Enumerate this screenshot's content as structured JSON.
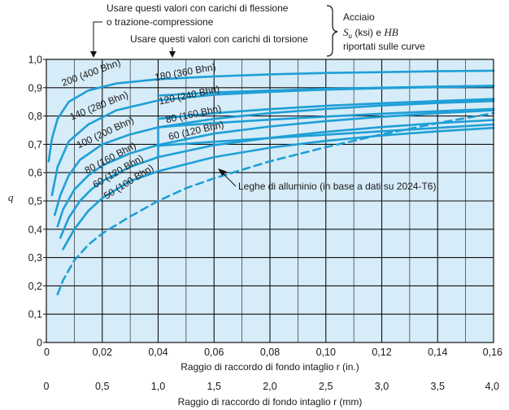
{
  "chart_data": {
    "type": "line",
    "xlabel": "Raggio di raccordo di fondo intaglio r (in.)",
    "xlabel2": "Raggio di raccordo di fondo intaglio r (mm)",
    "ylabel": "q",
    "xlim": [
      0,
      0.16
    ],
    "ylim": [
      0,
      1.0
    ],
    "xticks": [
      "0",
      "0,02",
      "0,04",
      "0,06",
      "0,08",
      "0,10",
      "0,12",
      "0,14",
      "0,16"
    ],
    "xticks_mm": [
      "0",
      "0,5",
      "1,0",
      "1,5",
      "2,0",
      "2,5",
      "3,0",
      "3,5",
      "4,0"
    ],
    "yticks": [
      "0",
      "0,1",
      "0,2",
      "0,3",
      "0,4",
      "0,5",
      "0,6",
      "0,7",
      "0,8",
      "0,9",
      "1,0"
    ],
    "grid": true,
    "colors": {
      "background": "#d6ecf8",
      "curve": "#1e9fd6",
      "grid": "#111111"
    },
    "annotations": {
      "bending_line1": "Usare questi valori con carichi di flessione",
      "bending_line2": "o trazione-compressione",
      "torsion": "Usare questi valori con carichi di torsione",
      "steel_title": "Acciaio",
      "steel_su": "S",
      "steel_su_sub": "u",
      "steel_rest": " (ksi) e ",
      "steel_hb": "HB",
      "steel_line2": "riportati sulle curve",
      "aluminum": "Leghe di alluminio (in base a dati su 2024-T6)"
    },
    "series": [
      {
        "name": "200 (400 Bhn)",
        "group": "bending",
        "dashed_until": 0.0,
        "x": [
          0.0008,
          0.002,
          0.004,
          0.008,
          0.015,
          0.025,
          0.04,
          0.06,
          0.08,
          0.1,
          0.12,
          0.14,
          0.16
        ],
        "y": [
          0.64,
          0.72,
          0.79,
          0.85,
          0.89,
          0.915,
          0.93,
          0.94,
          0.947,
          0.952,
          0.955,
          0.958,
          0.96
        ]
      },
      {
        "name": "140 (280 Bhn)",
        "group": "bending",
        "dashed_until": 0.0,
        "x": [
          0.002,
          0.004,
          0.008,
          0.015,
          0.025,
          0.04,
          0.06,
          0.08,
          0.1,
          0.12,
          0.14,
          0.16
        ],
        "y": [
          0.52,
          0.62,
          0.71,
          0.77,
          0.82,
          0.855,
          0.875,
          0.885,
          0.893,
          0.898,
          0.902,
          0.905
        ]
      },
      {
        "name": "100 (200 Bhn)",
        "group": "bending",
        "dashed_until": 0.0,
        "x": [
          0.003,
          0.005,
          0.008,
          0.012,
          0.02,
          0.03,
          0.04,
          0.06,
          0.08,
          0.1,
          0.12,
          0.14,
          0.16
        ],
        "y": [
          0.45,
          0.52,
          0.59,
          0.645,
          0.7,
          0.735,
          0.76,
          0.79,
          0.81,
          0.825,
          0.837,
          0.846,
          0.853
        ]
      },
      {
        "name": "80 (160 Bhn)",
        "group": "bending",
        "dashed_until": 0.0,
        "x": [
          0.004,
          0.006,
          0.01,
          0.015,
          0.02,
          0.03,
          0.04,
          0.06,
          0.08,
          0.1,
          0.12,
          0.14,
          0.16
        ],
        "y": [
          0.41,
          0.47,
          0.54,
          0.59,
          0.625,
          0.668,
          0.698,
          0.738,
          0.763,
          0.782,
          0.797,
          0.81,
          0.82
        ]
      },
      {
        "name": "60 (120 Bhn)",
        "group": "bending",
        "dashed_until": 0.0,
        "x": [
          0.005,
          0.008,
          0.012,
          0.016,
          0.02,
          0.03,
          0.04,
          0.06,
          0.08,
          0.1,
          0.12,
          0.14,
          0.16
        ],
        "y": [
          0.37,
          0.44,
          0.5,
          0.54,
          0.57,
          0.62,
          0.655,
          0.697,
          0.723,
          0.744,
          0.761,
          0.775,
          0.786
        ]
      },
      {
        "name": "50 (100 Bhn)",
        "group": "bending",
        "dashed_until": 0.0,
        "x": [
          0.006,
          0.01,
          0.015,
          0.02,
          0.03,
          0.04,
          0.06,
          0.08,
          0.1,
          0.12,
          0.14,
          0.16
        ],
        "y": [
          0.33,
          0.4,
          0.465,
          0.51,
          0.57,
          0.605,
          0.655,
          0.688,
          0.712,
          0.731,
          0.746,
          0.758
        ]
      },
      {
        "name": "180 (360 Bhn)",
        "group": "torsion",
        "dashed_until": 0.0,
        "x": [
          0.04,
          0.05,
          0.06,
          0.08,
          0.1,
          0.12,
          0.14,
          0.16
        ],
        "y": [
          0.872,
          0.878,
          0.883,
          0.89,
          0.896,
          0.9,
          0.904,
          0.907
        ]
      },
      {
        "name": "120 (240 Bhn)",
        "group": "torsion",
        "dashed_until": 0.0,
        "x": [
          0.04,
          0.05,
          0.06,
          0.08,
          0.1,
          0.12,
          0.14,
          0.16
        ],
        "y": [
          0.79,
          0.8,
          0.81,
          0.824,
          0.836,
          0.845,
          0.853,
          0.86
        ]
      },
      {
        "name": "80 (160 Bhn)",
        "group": "torsion",
        "dashed_until": 0.0,
        "x": [
          0.04,
          0.05,
          0.06,
          0.08,
          0.1,
          0.12,
          0.14,
          0.16
        ],
        "y": [
          0.76,
          0.768,
          0.775,
          0.787,
          0.798,
          0.808,
          0.817,
          0.825
        ]
      },
      {
        "name": "60 (120 Bhn)",
        "group": "torsion",
        "dashed_until": 0.0,
        "x": [
          0.04,
          0.05,
          0.06,
          0.08,
          0.1,
          0.12,
          0.14,
          0.16
        ],
        "y": [
          0.695,
          0.702,
          0.709,
          0.722,
          0.734,
          0.746,
          0.758,
          0.77
        ]
      },
      {
        "name": "",
        "group": "aluminum",
        "dashed_until": 0.16,
        "x": [
          0.004,
          0.006,
          0.01,
          0.015,
          0.02,
          0.03,
          0.04,
          0.05,
          0.06,
          0.08,
          0.1,
          0.12,
          0.14,
          0.16
        ],
        "y": [
          0.17,
          0.22,
          0.29,
          0.345,
          0.385,
          0.445,
          0.5,
          0.545,
          0.58,
          0.64,
          0.69,
          0.735,
          0.775,
          0.81
        ]
      }
    ],
    "torsion_joins": [
      {
        "x": 0.04,
        "y1": 0.76,
        "y2": 0.7
      },
      {
        "x": 0.04,
        "y1": 0.695,
        "y2": 0.655
      }
    ]
  }
}
